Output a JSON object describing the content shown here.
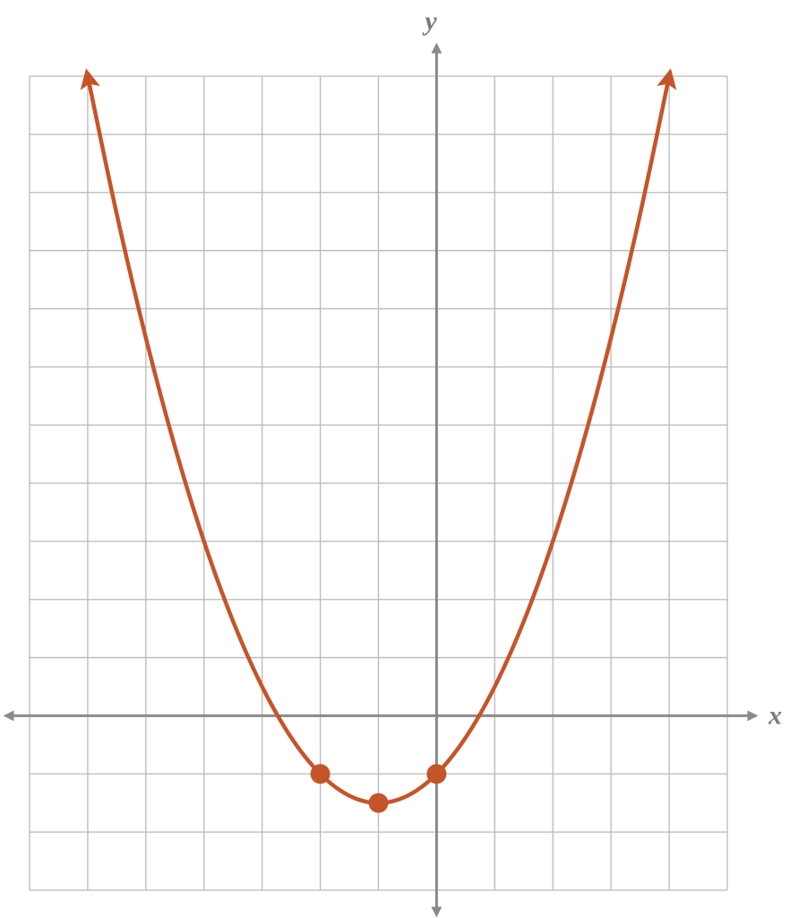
{
  "chart_data": {
    "type": "function-plot",
    "xlabel": "x",
    "ylabel": "y",
    "xlim": [
      -7,
      5
    ],
    "ylim": [
      -3,
      11
    ],
    "xticks": [
      -7,
      -6,
      -5,
      -4,
      -3,
      -2,
      -1,
      0,
      1,
      2,
      3,
      4,
      5
    ],
    "yticks": [
      -3,
      -2,
      -1,
      0,
      1,
      2,
      3,
      4,
      5,
      6,
      7,
      8,
      9,
      10,
      11
    ],
    "grid": true,
    "color": "#c4552a",
    "curve": {
      "x": [
        -6,
        -5.5,
        -5,
        -4.5,
        -4,
        -3.5,
        -3,
        -2.5,
        -2,
        -1.5,
        -1,
        -0.5,
        0,
        0.5,
        1,
        1.5,
        2,
        2.5,
        3,
        3.5,
        4
      ],
      "y": [
        11,
        8.625,
        6.5,
        4.625,
        3,
        1.625,
        0.5,
        -0.375,
        -1,
        -1.375,
        -1.5,
        -1.375,
        -1,
        -0.375,
        0.5,
        1.625,
        3,
        4.625,
        6.5,
        8.625,
        11
      ]
    },
    "points": {
      "x": [
        -2,
        -1,
        0
      ],
      "y": [
        -1,
        -1.5,
        -1
      ]
    }
  }
}
